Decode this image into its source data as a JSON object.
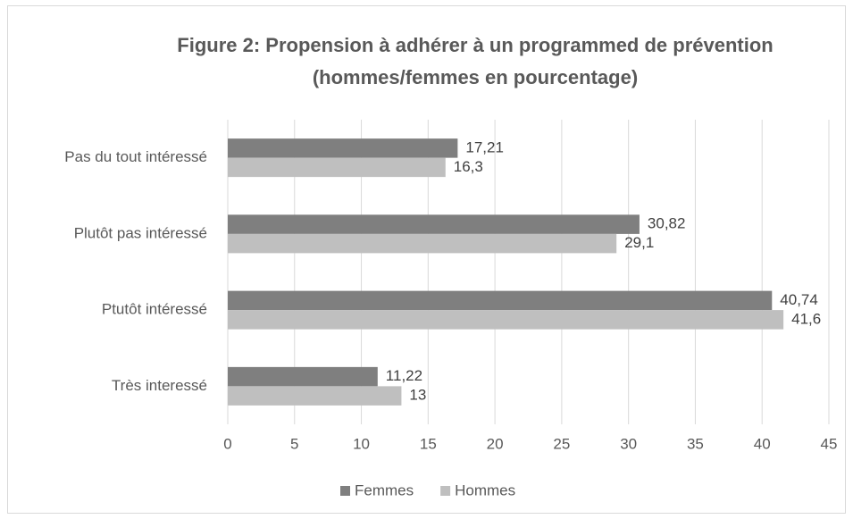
{
  "chart_data": {
    "type": "bar",
    "orientation": "horizontal",
    "title": [
      "Figure 2: Propension à adhérer à un programmed de prévention",
      "(hommes/femmes en pourcentage)"
    ],
    "categories": [
      "Pas du tout intéressé",
      "Plutôt pas intéressé",
      "Ptutôt intéressé",
      "Très interessé"
    ],
    "series": [
      {
        "name": "Femmes",
        "color": "#7f7f7f",
        "values": [
          17.21,
          30.82,
          40.74,
          11.22
        ],
        "value_labels": [
          "17,21",
          "30,82",
          "40,74",
          "11,22"
        ]
      },
      {
        "name": "Hommes",
        "color": "#bfbfbf",
        "values": [
          16.3,
          29.1,
          41.6,
          13
        ],
        "value_labels": [
          "16,3",
          "29,1",
          "41,6",
          "13"
        ]
      }
    ],
    "xlim": [
      0,
      45
    ],
    "xticks": [
      0,
      5,
      10,
      15,
      20,
      25,
      30,
      35,
      40,
      45
    ],
    "grid": true,
    "legend": "bottom"
  }
}
